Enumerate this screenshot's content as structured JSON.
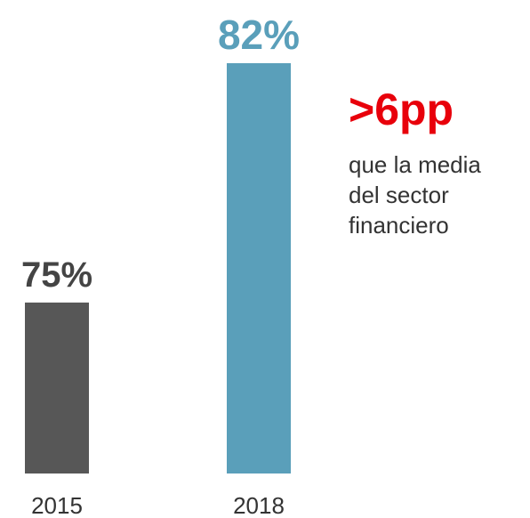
{
  "chart_data": {
    "type": "bar",
    "categories": [
      "2015",
      "2018"
    ],
    "values": [
      75,
      82
    ],
    "value_labels": [
      "75%",
      "82%"
    ],
    "colors": [
      "#575757",
      "#5a9fba"
    ],
    "ylim": [
      70,
      82
    ],
    "annotation": {
      "title": ">6pp",
      "lines": [
        "que la media",
        "del sector",
        "financiero"
      ],
      "color": "#e8000b"
    }
  }
}
